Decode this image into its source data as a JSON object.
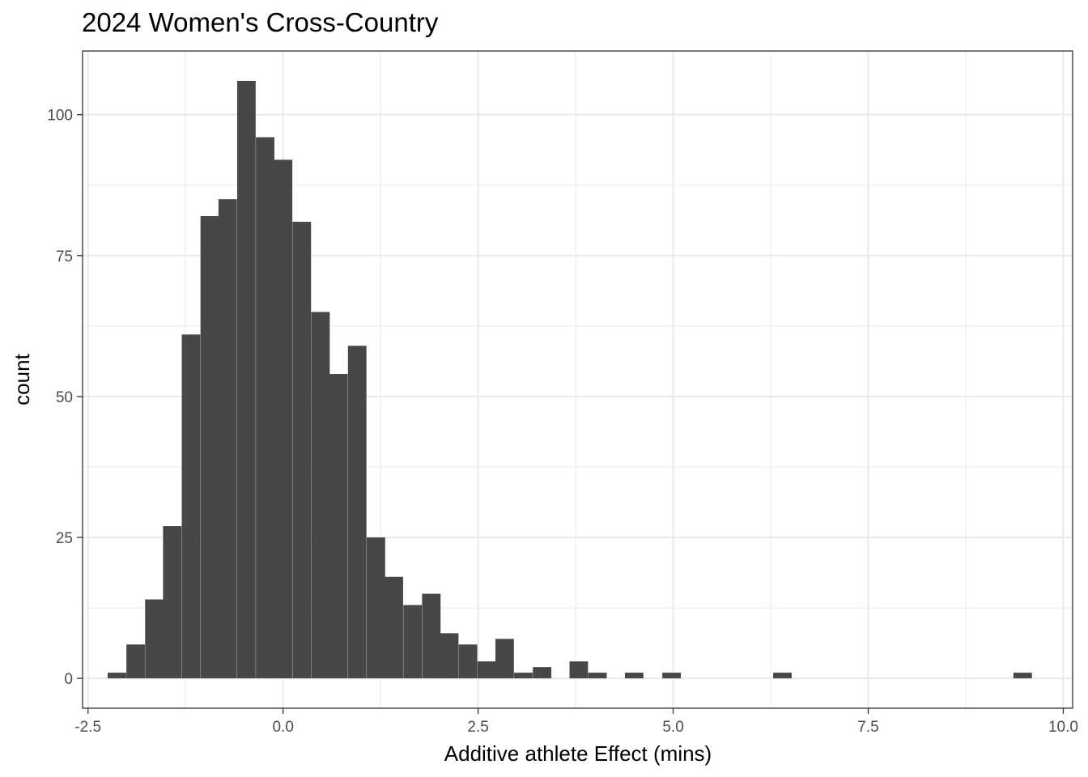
{
  "chart_data": {
    "type": "bar",
    "title": "2024 Women's Cross-Country",
    "xlabel": "Additive athlete Effect (mins)",
    "ylabel": "count",
    "xlim": [
      -2.57,
      10.12
    ],
    "ylim": [
      -5.3,
      111.3
    ],
    "x_ticks": [
      -2.5,
      0.0,
      2.5,
      5.0,
      7.5,
      10.0
    ],
    "x_tick_labels": [
      "-2.5",
      "0.0",
      "2.5",
      "5.0",
      "7.5",
      "10.0"
    ],
    "y_ticks": [
      0,
      25,
      50,
      75,
      100
    ],
    "y_tick_labels": [
      "0",
      "25",
      "50",
      "75",
      "100"
    ],
    "grid": true,
    "bin_width": 0.237,
    "bins": [
      {
        "x": -2.13,
        "count": 1
      },
      {
        "x": -1.89,
        "count": 6
      },
      {
        "x": -1.65,
        "count": 14
      },
      {
        "x": -1.42,
        "count": 27
      },
      {
        "x": -1.18,
        "count": 61
      },
      {
        "x": -0.94,
        "count": 82
      },
      {
        "x": -0.71,
        "count": 85
      },
      {
        "x": -0.47,
        "count": 106
      },
      {
        "x": -0.23,
        "count": 96
      },
      {
        "x": 0.0,
        "count": 92
      },
      {
        "x": 0.24,
        "count": 81
      },
      {
        "x": 0.48,
        "count": 65
      },
      {
        "x": 0.71,
        "count": 54
      },
      {
        "x": 0.95,
        "count": 59
      },
      {
        "x": 1.19,
        "count": 25
      },
      {
        "x": 1.42,
        "count": 18
      },
      {
        "x": 1.66,
        "count": 13
      },
      {
        "x": 1.9,
        "count": 15
      },
      {
        "x": 2.13,
        "count": 8
      },
      {
        "x": 2.37,
        "count": 6
      },
      {
        "x": 2.61,
        "count": 3
      },
      {
        "x": 2.84,
        "count": 7
      },
      {
        "x": 3.08,
        "count": 1
      },
      {
        "x": 3.32,
        "count": 2
      },
      {
        "x": 3.79,
        "count": 3
      },
      {
        "x": 4.03,
        "count": 1
      },
      {
        "x": 4.5,
        "count": 1
      },
      {
        "x": 4.98,
        "count": 1
      },
      {
        "x": 6.4,
        "count": 1
      },
      {
        "x": 9.48,
        "count": 1
      }
    ]
  }
}
